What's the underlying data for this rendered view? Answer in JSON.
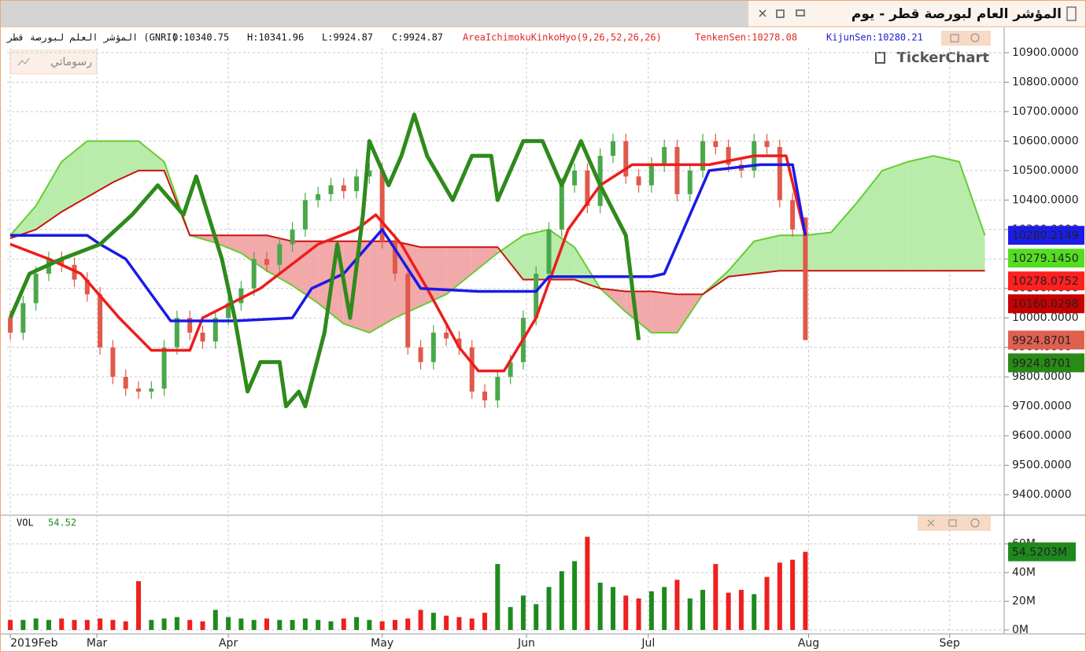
{
  "header": {
    "title": "المؤشر العام لبورصة قطر - يوم"
  },
  "info": {
    "symbol": "المؤشر العلم لبورصة قطر (GNRI)",
    "open": "O:10340.75",
    "high": "H:10341.96",
    "low": "L:9924.87",
    "close": "C:9924.87",
    "indicator": "AreaIchimokuKinkoHyo(9,26,52,26,26)",
    "tenkan": "TenkenSen:10278.08",
    "kijun": "KijunSen:10280.21"
  },
  "brand": "TickerChart",
  "drawings_button": "رسوماتي",
  "chart_data": [
    {
      "type": "candlestick",
      "xlim": [
        -0.5,
        155
      ],
      "ylim": [
        9336,
        10916
      ],
      "grid": true,
      "xticks": [
        {
          "value": 0,
          "label": "2019Feb"
        },
        {
          "value": 13.5,
          "label": "Mar"
        },
        {
          "value": 34,
          "label": "Apr"
        },
        {
          "value": 58,
          "label": "May"
        },
        {
          "value": 80.5,
          "label": "Jun"
        },
        {
          "value": 99.5,
          "label": "Jul"
        },
        {
          "value": 124.5,
          "label": "Aug"
        },
        {
          "value": 146.5,
          "label": "Sep"
        }
      ],
      "yticks": [
        {
          "value": 9400,
          "label": "9400.0000"
        },
        {
          "value": 9500,
          "label": "9500.0000"
        },
        {
          "value": 9600,
          "label": "9600.0000"
        },
        {
          "value": 9700,
          "label": "9700.0000"
        },
        {
          "value": 9800,
          "label": "9800.0000"
        },
        {
          "value": 9900,
          "label": "9900.0000"
        },
        {
          "value": 10000,
          "label": "10000.0000"
        },
        {
          "value": 10100,
          "label": "10100.0000"
        },
        {
          "value": 10200,
          "label": "10200.0000"
        },
        {
          "value": 10300,
          "label": "10300.0000"
        },
        {
          "value": 10400,
          "label": "10400.0000"
        },
        {
          "value": 10500,
          "label": "10500.0000"
        },
        {
          "value": 10600,
          "label": "10600.0000"
        },
        {
          "value": 10700,
          "label": "10700.0000"
        },
        {
          "value": 10800,
          "label": "10800.0000"
        },
        {
          "value": 10900,
          "label": "10900.0000"
        }
      ],
      "up_color": "#4aa84a",
      "down_color": "#e0594a",
      "candles": {
        "x": [
          0,
          2,
          4,
          6,
          8,
          10,
          12,
          14,
          16,
          18,
          20,
          22,
          24,
          26,
          28,
          30,
          32,
          34,
          36,
          38,
          40,
          42,
          44,
          46,
          48,
          50,
          52,
          54,
          56,
          58,
          60,
          62,
          64,
          66,
          68,
          70,
          72,
          74,
          76,
          78,
          80,
          82,
          84,
          86,
          88,
          90,
          92,
          94,
          96,
          98,
          100,
          102,
          104,
          106,
          108,
          110,
          112,
          114,
          116,
          118,
          120,
          122,
          124
        ],
        "open": [
          10000,
          9950,
          10050,
          10150,
          10200,
          10180,
          10130,
          10080,
          9900,
          9800,
          9760,
          9750,
          9760,
          9900,
          10000,
          9950,
          9920,
          10000,
          10050,
          10100,
          10200,
          10180,
          10250,
          10300,
          10400,
          10420,
          10450,
          10430,
          10480,
          10500,
          10260,
          10150,
          9900,
          9850,
          9950,
          9930,
          9900,
          9750,
          9720,
          9800,
          9850,
          10000,
          10150,
          10300,
          10450,
          10500,
          10380,
          10550,
          10600,
          10480,
          10450,
          10520,
          10580,
          10420,
          10500,
          10600,
          10580,
          10520,
          10500,
          10600,
          10580,
          10400,
          10340.75
        ],
        "high": [
          10025,
          10075,
          10175,
          10225,
          10225,
          10205,
          10155,
          10105,
          9925,
          9825,
          9785,
          9785,
          9925,
          10025,
          10025,
          9975,
          10025,
          10075,
          10125,
          10225,
          10225,
          10275,
          10325,
          10425,
          10445,
          10475,
          10475,
          10505,
          10525,
          10525,
          10285,
          10175,
          9925,
          9975,
          9975,
          9955,
          9925,
          9775,
          9825,
          9875,
          10025,
          10175,
          10325,
          10475,
          10525,
          10525,
          10575,
          10625,
          10625,
          10505,
          10545,
          10605,
          10605,
          10525,
          10625,
          10625,
          10605,
          10545,
          10625,
          10625,
          10605,
          10425,
          10341.96
        ],
        "low": [
          9925,
          9925,
          10025,
          10125,
          10155,
          10105,
          10055,
          9875,
          9775,
          9735,
          9725,
          9725,
          9735,
          9875,
          9925,
          9895,
          9895,
          9975,
          10025,
          10075,
          10155,
          10155,
          10225,
          10275,
          10375,
          10395,
          10405,
          10405,
          10455,
          10235,
          10125,
          9875,
          9825,
          9825,
          9905,
          9875,
          9725,
          9695,
          9695,
          9775,
          9825,
          9975,
          10125,
          10275,
          10425,
          10355,
          10355,
          10525,
          10455,
          10425,
          10425,
          10495,
          10395,
          10395,
          10475,
          10555,
          10495,
          10475,
          10475,
          10555,
          10375,
          10275,
          9924.87
        ],
        "close": [
          9950,
          10050,
          10150,
          10200,
          10180,
          10130,
          10080,
          9900,
          9800,
          9760,
          9750,
          9760,
          9900,
          10000,
          9950,
          9920,
          10000,
          10050,
          10100,
          10200,
          10180,
          10250,
          10300,
          10400,
          10420,
          10450,
          10430,
          10480,
          10500,
          10260,
          10150,
          9900,
          9850,
          9950,
          9930,
          9900,
          9750,
          9720,
          9800,
          9850,
          10000,
          10150,
          10300,
          10450,
          10500,
          10380,
          10550,
          10600,
          10480,
          10450,
          10520,
          10580,
          10420,
          10500,
          10600,
          10580,
          10520,
          10500,
          10600,
          10580,
          10400,
          10300,
          9924.87
        ]
      },
      "cloud": {
        "x": [
          0,
          4,
          8,
          12,
          16,
          20,
          24,
          28,
          32,
          36,
          40,
          44,
          48,
          52,
          56,
          60,
          64,
          68,
          72,
          76,
          80,
          84,
          88,
          92,
          96,
          100,
          104,
          108,
          112,
          116,
          120,
          124,
          128,
          132,
          136,
          140,
          144,
          148,
          152
        ],
        "span_a": [
          10280,
          10380,
          10530,
          10600,
          10600,
          10600,
          10530,
          10280,
          10255,
          10220,
          10160,
          10110,
          10050,
          9980,
          9950,
          10000,
          10040,
          10080,
          10150,
          10220,
          10280,
          10300,
          10240,
          10100,
          10020,
          9950,
          9950,
          10080,
          10160,
          10260,
          10280,
          10280,
          10290,
          10390,
          10500,
          10530,
          10550,
          10530,
          10280
        ],
        "span_b": [
          10270,
          10300,
          10360,
          10410,
          10460,
          10500,
          10500,
          10280,
          10280,
          10280,
          10280,
          10260,
          10260,
          10260,
          10260,
          10260,
          10240,
          10240,
          10240,
          10240,
          10130,
          10130,
          10130,
          10100,
          10090,
          10090,
          10080,
          10080,
          10140,
          10150,
          10160,
          10160,
          10160,
          10160,
          10160,
          10160,
          10160,
          10160,
          10160
        ],
        "span_a_color": "#66cc33",
        "span_b_color": "#cc1111",
        "up_color": "#b9ecaa",
        "down_color": "#f2a9a9"
      },
      "lines": [
        {
          "color": "#ee1c1c",
          "width": 3.5,
          "x": [
            0,
            6,
            11,
            17,
            22,
            28,
            30,
            39,
            48,
            54,
            57,
            61,
            65,
            70,
            73,
            77,
            82,
            87,
            92,
            97,
            103,
            109,
            116,
            121,
            124
          ],
          "values": [
            10250,
            10200,
            10150,
            10000,
            9890,
            9890,
            10000,
            10100,
            10250,
            10300,
            10350,
            10250,
            10100,
            9900,
            9820,
            9820,
            10000,
            10300,
            10450,
            10520,
            10520,
            10520,
            10550,
            10550,
            10278.08
          ]
        },
        {
          "color": "#1a1ae6",
          "width": 3.5,
          "x": [
            0,
            12,
            14,
            18,
            22,
            25,
            35,
            44,
            47,
            52,
            58,
            61,
            64,
            73,
            82,
            84,
            100,
            102,
            105,
            109,
            117,
            122,
            124
          ],
          "values": [
            10280,
            10280,
            10250,
            10200,
            10080,
            9990,
            9990,
            10000,
            10100,
            10150,
            10300,
            10200,
            10100,
            10090,
            10090,
            10140,
            10140,
            10150,
            10300,
            10500,
            10520,
            10520,
            10280.21
          ]
        },
        {
          "color": "#2f8a1c",
          "width": 5,
          "x": [
            0,
            3,
            8,
            14,
            19,
            23,
            27,
            29,
            33,
            35,
            37,
            39,
            42,
            43,
            45,
            46,
            49,
            51,
            53,
            55,
            56,
            59,
            61,
            63,
            65,
            69,
            72,
            75,
            76,
            80,
            83,
            86,
            89,
            92,
            96,
            98
          ],
          "values": [
            10000,
            10150,
            10200,
            10250,
            10350,
            10450,
            10350,
            10480,
            10200,
            10000,
            9750,
            9850,
            9850,
            9700,
            9750,
            9700,
            9950,
            10250,
            10000,
            10350,
            10600,
            10450,
            10550,
            10690,
            10550,
            10400,
            10550,
            10550,
            10400,
            10600,
            10600,
            10450,
            10600,
            10450,
            10280,
            9925
          ]
        }
      ],
      "price_labels": [
        {
          "value": 10280.2149,
          "label": "10280.2149",
          "color": "#1c1ce8",
          "text_color": "#ffffff"
        },
        {
          "value": 10279.145,
          "label": "10279.1450",
          "color": "#55dd22",
          "text_color": "#10330a"
        },
        {
          "value": 10278.0752,
          "label": "10278.0752",
          "color": "#ff2020",
          "text_color": "#ffffff"
        },
        {
          "value": 10160.0298,
          "label": "10160.0298",
          "color": "#c80000",
          "text_color": "#ffffff"
        },
        {
          "value": 9924.8701,
          "label": "9924.8701",
          "color": "#e06050",
          "text_color": "#ffffff"
        },
        {
          "value": 9924.8701,
          "label": "9924.8701",
          "color": "#2a8a16",
          "text_color": "#ffffff"
        }
      ]
    },
    {
      "type": "bar",
      "label": "VOL",
      "last": "54.52",
      "xlim": [
        -0.5,
        155
      ],
      "ylim": [
        -2.75,
        79
      ],
      "yticks": [
        {
          "value": 0,
          "label": "0M"
        },
        {
          "value": 20,
          "label": "20M"
        },
        {
          "value": 40,
          "label": "40M"
        },
        {
          "value": 60,
          "label": "60M"
        }
      ],
      "up_color": "#1e8a1e",
      "down_color": "#ee1f1f",
      "x": [
        0,
        2,
        4,
        6,
        8,
        10,
        12,
        14,
        16,
        18,
        20,
        22,
        24,
        26,
        28,
        30,
        32,
        34,
        36,
        38,
        40,
        42,
        44,
        46,
        48,
        50,
        52,
        54,
        56,
        58,
        60,
        62,
        64,
        66,
        68,
        70,
        72,
        74,
        76,
        78,
        80,
        82,
        84,
        86,
        88,
        90,
        92,
        94,
        96,
        98,
        100,
        102,
        104,
        106,
        108,
        110,
        112,
        114,
        116,
        118,
        120,
        122,
        124
      ],
      "values": [
        7,
        7,
        8,
        7,
        8,
        7,
        7,
        8,
        7,
        6,
        34,
        7,
        8,
        9,
        7,
        6,
        14,
        9,
        8,
        7,
        8,
        7,
        7,
        8,
        7,
        6,
        8,
        9,
        7,
        6,
        7,
        8,
        14,
        12,
        10,
        9,
        8,
        12,
        46,
        16,
        24,
        18,
        30,
        41,
        48,
        65,
        33,
        30,
        24,
        22,
        27,
        30,
        35,
        22,
        28,
        46,
        26,
        28,
        25,
        37,
        47,
        49,
        54.52
      ],
      "last_label": {
        "value": 54.5203,
        "label": "54.5203M",
        "color": "#1e8a1e"
      }
    }
  ]
}
